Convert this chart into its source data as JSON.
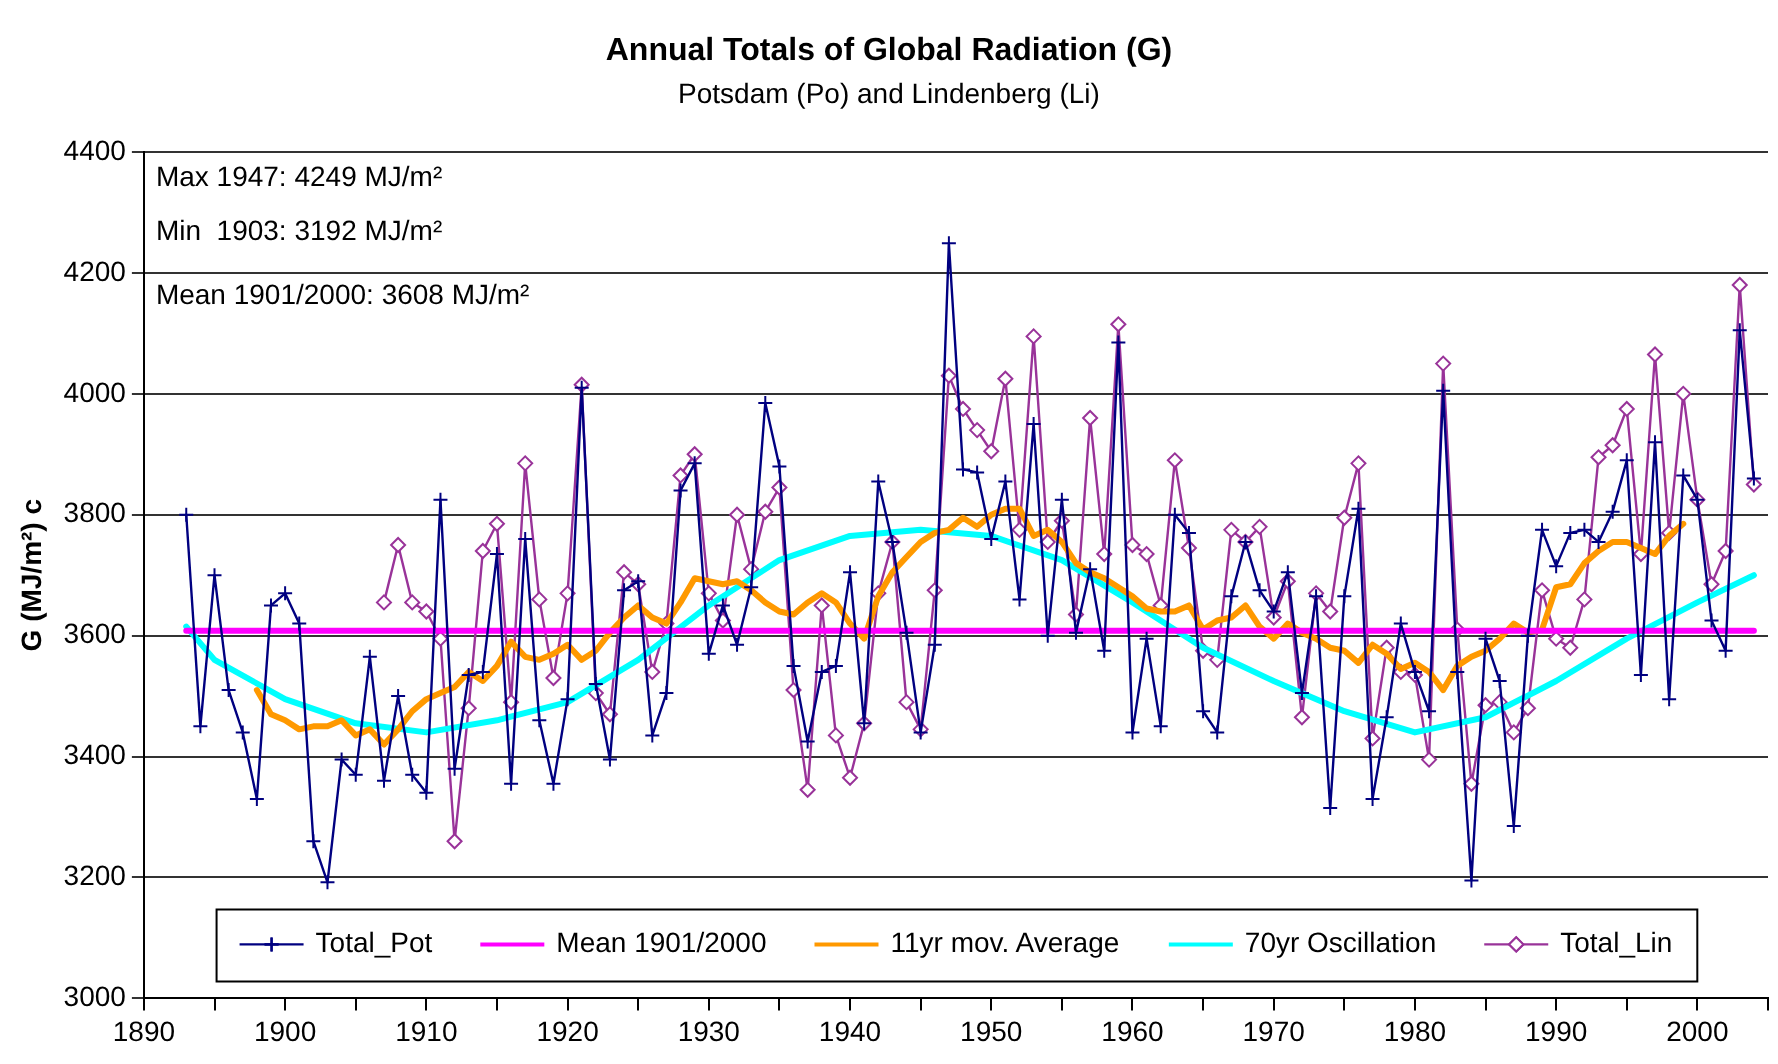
{
  "chart_data": {
    "type": "line",
    "title": "Annual Totals of Global Radiation (G)",
    "subtitle": "Potsdam (Po) and Lindenberg (Li)",
    "ylabel": "G (MJ/m²) c",
    "annotations": [
      "Max 1947: 4249 MJ/m²",
      "Min  1903: 3192 MJ/m²",
      "Mean 1901/2000: 3608 MJ/m²"
    ],
    "xlim": [
      1890,
      2005
    ],
    "xticks": [
      1890,
      {
        "value": 1895,
        "label": null
      },
      1900,
      {
        "value": 1905,
        "label": null
      },
      1910,
      {
        "value": 1915,
        "label": null
      },
      1920,
      {
        "value": 1925,
        "label": null
      },
      1930,
      {
        "value": 1935,
        "label": null
      },
      1940,
      {
        "value": 1945,
        "label": null
      },
      1950,
      {
        "value": 1955,
        "label": null
      },
      1960,
      {
        "value": 1965,
        "label": null
      },
      1970,
      {
        "value": 1975,
        "label": null
      },
      1980,
      {
        "value": 1985,
        "label": null
      },
      1990,
      {
        "value": 1995,
        "label": null
      },
      2000,
      {
        "value": 2005,
        "label": null
      }
    ],
    "ylim": [
      3000,
      4400
    ],
    "yticks": [
      3000,
      3200,
      3400,
      3600,
      3800,
      4000,
      4200,
      4400
    ],
    "grid": "y",
    "legend": "bottom",
    "line_style": "solid",
    "series": [
      {
        "name": "Total_Pot",
        "color": "#000080",
        "marker": "cross",
        "x": [
          1893,
          1894,
          1895,
          1896,
          1897,
          1898,
          1899,
          1900,
          1901,
          1902,
          1903,
          1904,
          1905,
          1906,
          1907,
          1908,
          1909,
          1910,
          1911,
          1912,
          1913,
          1914,
          1915,
          1916,
          1917,
          1918,
          1919,
          1920,
          1921,
          1922,
          1923,
          1924,
          1925,
          1926,
          1927,
          1928,
          1929,
          1930,
          1931,
          1932,
          1933,
          1934,
          1935,
          1936,
          1937,
          1938,
          1939,
          1940,
          1941,
          1942,
          1943,
          1944,
          1945,
          1946,
          1947,
          1948,
          1949,
          1950,
          1951,
          1952,
          1953,
          1954,
          1955,
          1956,
          1957,
          1958,
          1959,
          1960,
          1961,
          1962,
          1963,
          1964,
          1965,
          1966,
          1967,
          1968,
          1969,
          1970,
          1971,
          1972,
          1973,
          1974,
          1975,
          1976,
          1977,
          1978,
          1979,
          1980,
          1981,
          1982,
          1983,
          1984,
          1985,
          1986,
          1987,
          1988,
          1989,
          1990,
          1991,
          1992,
          1993,
          1994,
          1995,
          1996,
          1997,
          1998,
          1999,
          2000,
          2001,
          2002,
          2003,
          2004
        ],
        "values": [
          3800,
          3450,
          3700,
          3510,
          3440,
          3330,
          3650,
          3670,
          3620,
          3260,
          3192,
          3395,
          3370,
          3565,
          3360,
          3500,
          3370,
          3340,
          3825,
          3380,
          3535,
          3540,
          3735,
          3355,
          3760,
          3460,
          3355,
          3495,
          4010,
          3520,
          3395,
          3675,
          3690,
          3435,
          3505,
          3840,
          3885,
          3570,
          3650,
          3585,
          3680,
          3985,
          3880,
          3550,
          3425,
          3540,
          3550,
          3705,
          3455,
          3855,
          3755,
          3605,
          3440,
          3585,
          4249,
          3875,
          3870,
          3760,
          3855,
          3660,
          3950,
          3600,
          3825,
          3605,
          3710,
          3575,
          4085,
          3440,
          3595,
          3450,
          3800,
          3770,
          3475,
          3440,
          3665,
          3755,
          3675,
          3640,
          3705,
          3505,
          3665,
          3315,
          3665,
          3810,
          3330,
          3465,
          3620,
          3540,
          3475,
          4005,
          3540,
          3195,
          3595,
          3525,
          3285,
          3600,
          3775,
          3715,
          3770,
          3775,
          3755,
          3805,
          3890,
          3535,
          3920,
          3495,
          3865,
          3825,
          3625,
          3575,
          4105,
          3860
        ]
      },
      {
        "name": "Mean 1901/2000",
        "color": "#ff00ff",
        "marker": "none",
        "x": [
          1893,
          2004
        ],
        "values": [
          3608,
          3608
        ]
      },
      {
        "name": "11yr mov. Average",
        "color": "#ff9900",
        "marker": "none",
        "x": [
          1898,
          1899,
          1900,
          1901,
          1902,
          1903,
          1904,
          1905,
          1906,
          1907,
          1908,
          1909,
          1910,
          1911,
          1912,
          1913,
          1914,
          1915,
          1916,
          1917,
          1918,
          1919,
          1920,
          1921,
          1922,
          1923,
          1924,
          1925,
          1926,
          1927,
          1928,
          1929,
          1930,
          1931,
          1932,
          1933,
          1934,
          1935,
          1936,
          1937,
          1938,
          1939,
          1940,
          1941,
          1942,
          1943,
          1944,
          1945,
          1946,
          1947,
          1948,
          1949,
          1950,
          1951,
          1952,
          1953,
          1954,
          1955,
          1956,
          1957,
          1958,
          1959,
          1960,
          1961,
          1962,
          1963,
          1964,
          1965,
          1966,
          1967,
          1968,
          1969,
          1970,
          1971,
          1972,
          1973,
          1974,
          1975,
          1976,
          1977,
          1978,
          1979,
          1980,
          1981,
          1982,
          1983,
          1984,
          1985,
          1986,
          1987,
          1988,
          1989,
          1990,
          1991,
          1992,
          1993,
          1994,
          1995,
          1996,
          1997,
          1998,
          1999
        ],
        "values": [
          3510,
          3470,
          3460,
          3445,
          3450,
          3450,
          3460,
          3435,
          3445,
          3420,
          3445,
          3475,
          3495,
          3505,
          3515,
          3540,
          3525,
          3550,
          3590,
          3565,
          3560,
          3570,
          3585,
          3560,
          3575,
          3605,
          3630,
          3650,
          3630,
          3620,
          3655,
          3695,
          3690,
          3685,
          3690,
          3675,
          3655,
          3640,
          3635,
          3655,
          3670,
          3655,
          3620,
          3595,
          3665,
          3705,
          3730,
          3755,
          3770,
          3775,
          3795,
          3780,
          3800,
          3810,
          3810,
          3765,
          3775,
          3755,
          3720,
          3705,
          3695,
          3680,
          3665,
          3645,
          3640,
          3640,
          3650,
          3610,
          3625,
          3630,
          3650,
          3615,
          3595,
          3620,
          3605,
          3595,
          3580,
          3575,
          3555,
          3585,
          3570,
          3545,
          3555,
          3540,
          3510,
          3550,
          3565,
          3575,
          3595,
          3620,
          3605,
          3610,
          3680,
          3685,
          3720,
          3740,
          3755,
          3755,
          3745,
          3735,
          3765,
          3785
        ]
      },
      {
        "name": "70yr Oscillation",
        "color": "#00ffff",
        "marker": "none",
        "x": [
          1893,
          1895,
          1900,
          1905,
          1910,
          1915,
          1920,
          1925,
          1930,
          1935,
          1940,
          1945,
          1950,
          1955,
          1960,
          1965,
          1970,
          1975,
          1980,
          1985,
          1990,
          1995,
          2000,
          2004
        ],
        "values": [
          3615,
          3560,
          3495,
          3455,
          3440,
          3460,
          3490,
          3560,
          3650,
          3725,
          3765,
          3775,
          3765,
          3725,
          3655,
          3580,
          3525,
          3475,
          3440,
          3465,
          3525,
          3595,
          3655,
          3700
        ]
      },
      {
        "name": "Total_Lin",
        "color": "#993399",
        "marker": "diamond",
        "x": [
          1907,
          1908,
          1909,
          1910,
          1911,
          1912,
          1913,
          1914,
          1915,
          1916,
          1917,
          1918,
          1919,
          1920,
          1921,
          1922,
          1923,
          1924,
          1925,
          1926,
          1927,
          1928,
          1929,
          1930,
          1931,
          1932,
          1933,
          1934,
          1935,
          1936,
          1937,
          1938,
          1939,
          1940,
          1941,
          1942,
          1943,
          1944,
          1945,
          1946,
          1947,
          1948,
          1949,
          1950,
          1951,
          1952,
          1953,
          1954,
          1955,
          1956,
          1957,
          1958,
          1959,
          1960,
          1961,
          1962,
          1963,
          1964,
          1965,
          1966,
          1967,
          1968,
          1969,
          1970,
          1971,
          1972,
          1973,
          1974,
          1975,
          1976,
          1977,
          1978,
          1979,
          1980,
          1981,
          1982,
          1983,
          1984,
          1985,
          1986,
          1987,
          1988,
          1989,
          1990,
          1991,
          1992,
          1993,
          1994,
          1995,
          1996,
          1997,
          1998,
          1999,
          2000,
          2001,
          2002,
          2003,
          2004
        ],
        "values": [
          3655,
          3750,
          3655,
          3640,
          3595,
          3260,
          3480,
          3740,
          3785,
          3490,
          3885,
          3660,
          3530,
          3670,
          4015,
          3505,
          3470,
          3705,
          3685,
          3540,
          3620,
          3865,
          3900,
          3670,
          3625,
          3800,
          3710,
          3805,
          3845,
          3510,
          3345,
          3650,
          3435,
          3365,
          3455,
          3670,
          3755,
          3490,
          3445,
          3675,
          4030,
          3975,
          3940,
          3905,
          4025,
          3775,
          4095,
          3755,
          3790,
          3635,
          3960,
          3735,
          4115,
          3750,
          3735,
          3650,
          3890,
          3745,
          3575,
          3560,
          3775,
          3755,
          3780,
          3630,
          3690,
          3465,
          3670,
          3640,
          3795,
          3885,
          3430,
          3580,
          3540,
          3535,
          3395,
          4050,
          3610,
          3355,
          3485,
          3490,
          3440,
          3480,
          3675,
          3595,
          3580,
          3660,
          3895,
          3915,
          3975,
          3735,
          4065,
          3770,
          4000,
          3825,
          3685,
          3740,
          4180,
          3850
        ]
      }
    ]
  }
}
